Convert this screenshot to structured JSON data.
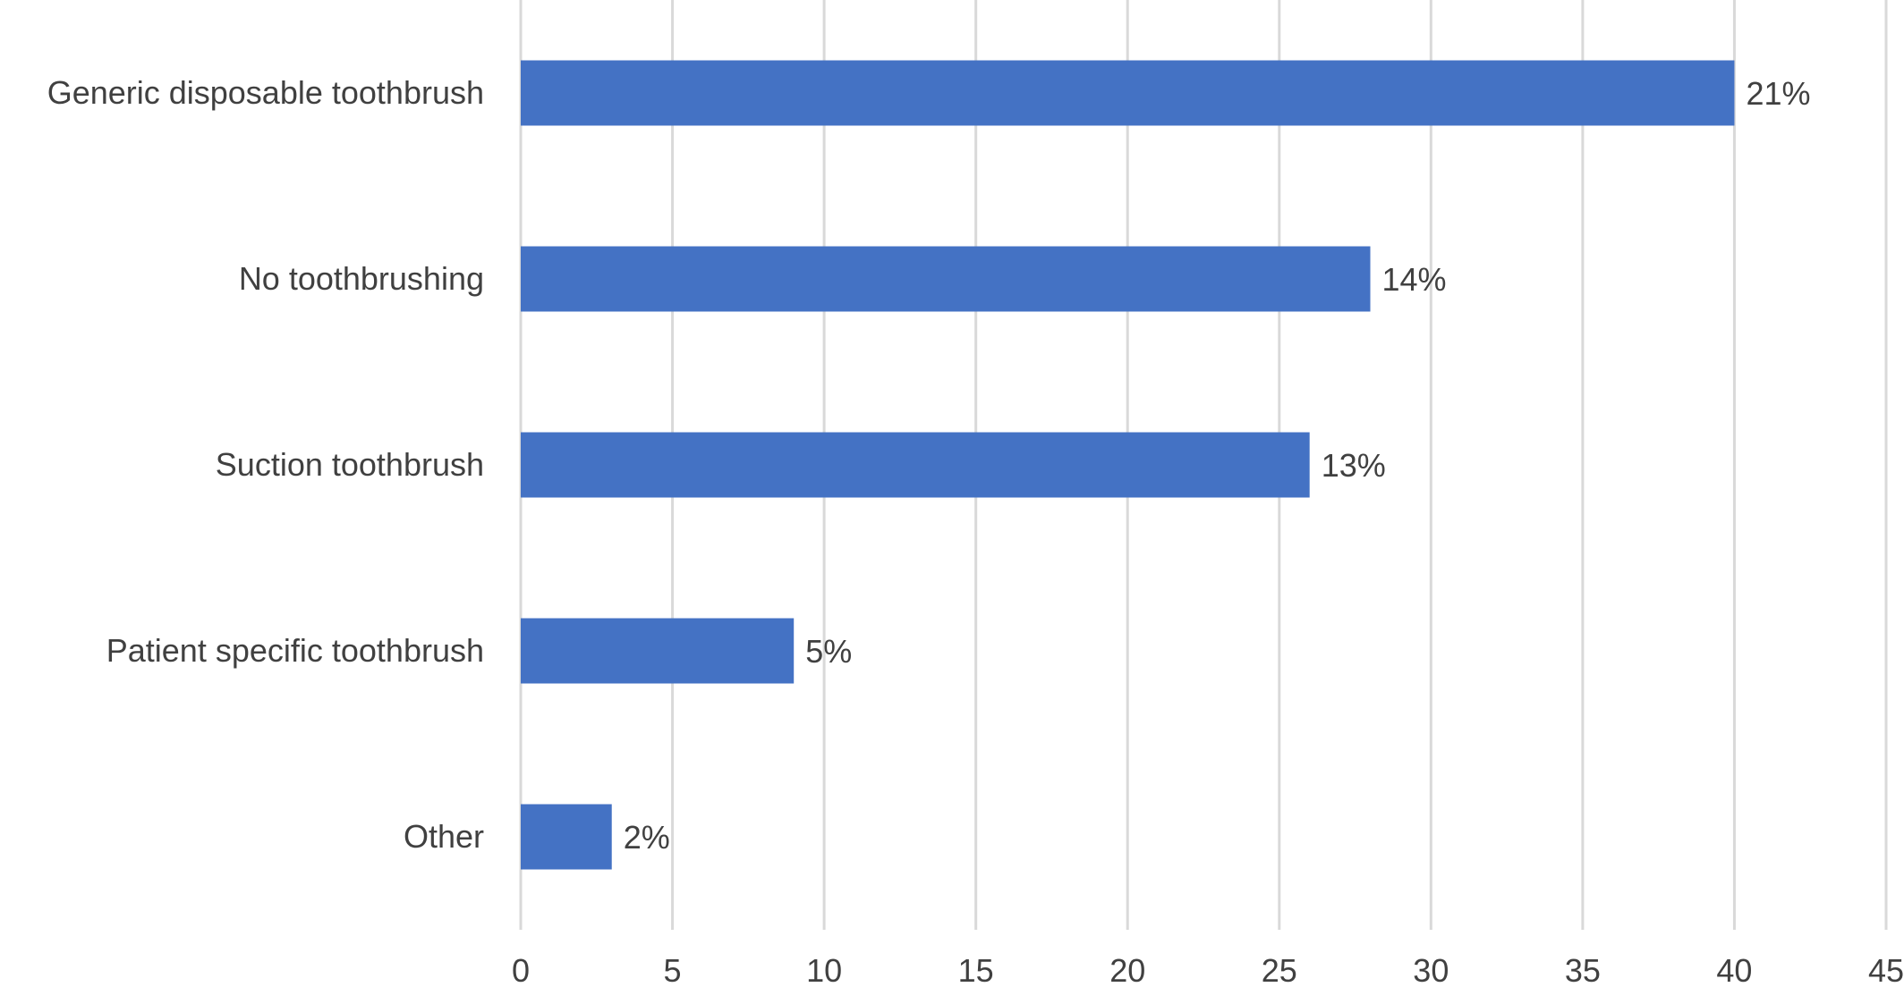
{
  "chart_data": {
    "type": "bar",
    "orientation": "horizontal",
    "categories": [
      "Generic disposable toothbrush",
      "No toothbrushing",
      "Suction toothbrush",
      "Patient specific toothbrush",
      "Other"
    ],
    "values": [
      40,
      28,
      26,
      9,
      3
    ],
    "data_labels": [
      "21%",
      "14%",
      "13%",
      "5%",
      "2%"
    ],
    "title": "",
    "xlabel": "",
    "ylabel": "",
    "xlim": [
      0,
      45
    ],
    "x_ticks": [
      0,
      5,
      10,
      15,
      20,
      25,
      30,
      35,
      40,
      45
    ],
    "grid": "vertical",
    "legend": "none",
    "bar_color": "#4472c4"
  }
}
